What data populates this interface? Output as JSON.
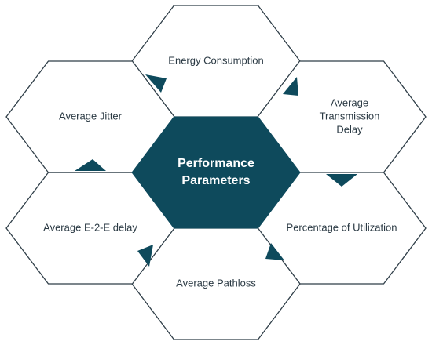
{
  "center": {
    "lines": [
      "Performance",
      "Parameters"
    ]
  },
  "nodes": [
    {
      "lines": [
        "Energy Consumption"
      ]
    },
    {
      "lines": [
        "Average",
        "Transmission",
        "Delay"
      ]
    },
    {
      "lines": [
        "Percentage of Utilization"
      ]
    },
    {
      "lines": [
        "Average Pathloss"
      ]
    },
    {
      "lines": [
        "Average E-2-E delay"
      ]
    },
    {
      "lines": [
        "Average Jitter"
      ]
    }
  ]
}
